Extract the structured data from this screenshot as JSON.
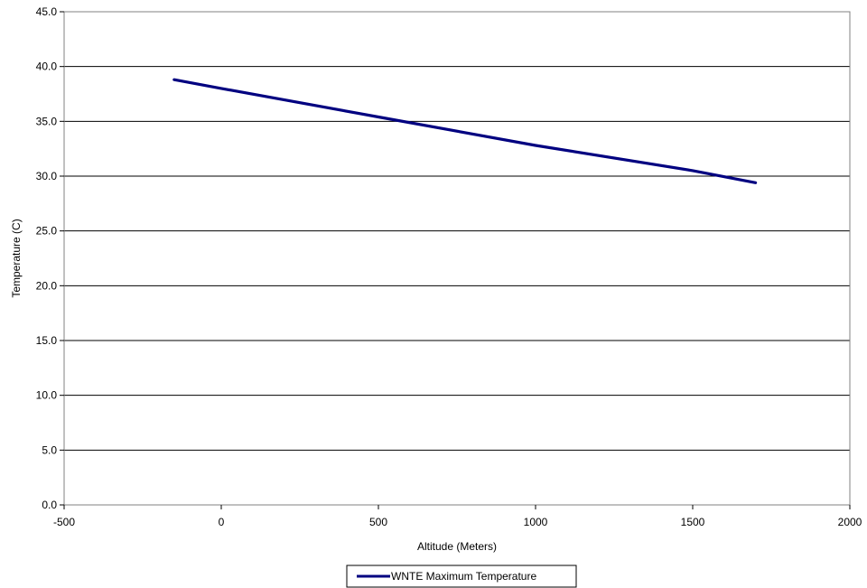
{
  "chart_data": {
    "type": "line",
    "title": "",
    "xlabel": "Altitude (Meters)",
    "ylabel": "Temperature (C)",
    "xlim": [
      -500,
      2000
    ],
    "ylim": [
      0,
      45
    ],
    "x_ticks": [
      -500,
      0,
      500,
      1000,
      1500,
      2000
    ],
    "x_tick_labels": [
      "-500",
      "0",
      "500",
      "1000",
      "1500",
      "2000"
    ],
    "y_ticks": [
      0,
      5,
      10,
      15,
      20,
      25,
      30,
      35,
      40,
      45
    ],
    "y_tick_labels": [
      "0.0",
      "5.0",
      "10.0",
      "15.0",
      "20.0",
      "25.0",
      "30.0",
      "35.0",
      "40.0",
      "45.0"
    ],
    "grid": "horizontal",
    "legend_position": "bottom",
    "series": [
      {
        "name": "WNTE Maximum Temperature",
        "color": "#000080",
        "x": [
          -150,
          0,
          500,
          1000,
          1500,
          1700
        ],
        "y": [
          38.8,
          38.0,
          35.4,
          32.8,
          30.5,
          29.4
        ]
      }
    ]
  }
}
